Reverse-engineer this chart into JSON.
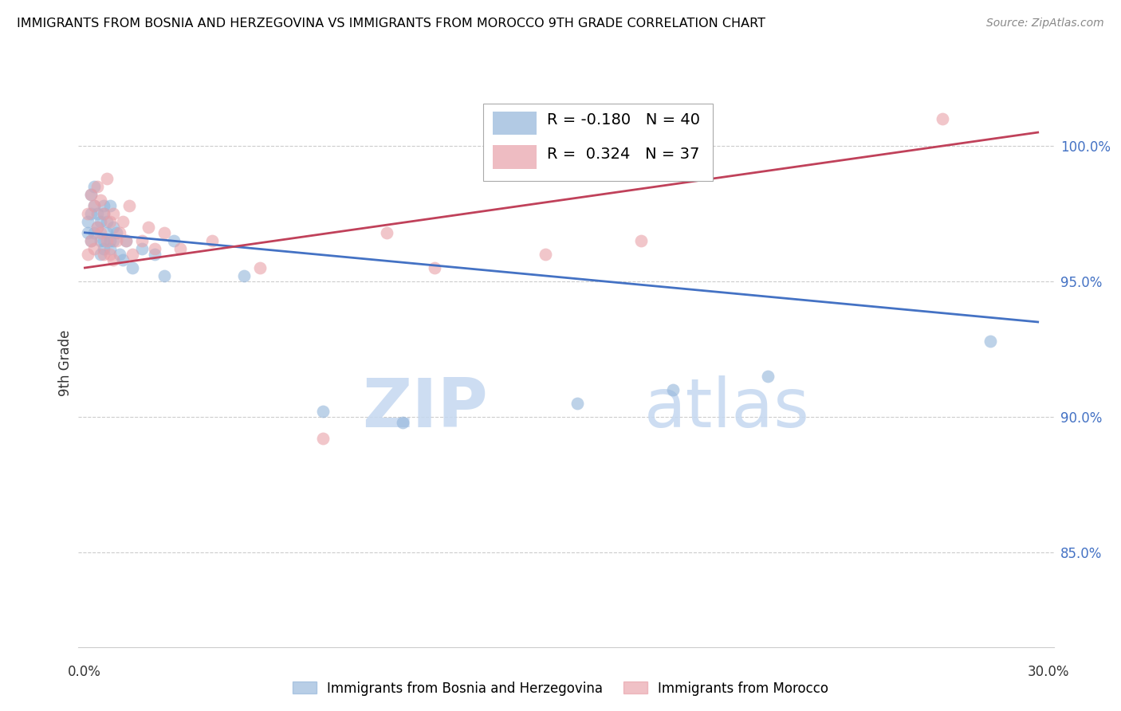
{
  "title": "IMMIGRANTS FROM BOSNIA AND HERZEGOVINA VS IMMIGRANTS FROM MOROCCO 9TH GRADE CORRELATION CHART",
  "source": "Source: ZipAtlas.com",
  "ylabel": "9th Grade",
  "yticks": [
    85.0,
    90.0,
    95.0,
    100.0
  ],
  "ylim": [
    81.5,
    102.5
  ],
  "xlim": [
    -0.002,
    0.305
  ],
  "legend_blue_r": "-0.180",
  "legend_blue_n": "40",
  "legend_pink_r": "0.324",
  "legend_pink_n": "37",
  "blue_color": "#92B4D9",
  "pink_color": "#E8A0A8",
  "blue_line_color": "#4472C4",
  "pink_line_color": "#C0415A",
  "watermark_zip": "ZIP",
  "watermark_atlas": "atlas",
  "blue_scatter_x": [
    0.001,
    0.001,
    0.002,
    0.002,
    0.002,
    0.003,
    0.003,
    0.003,
    0.004,
    0.004,
    0.005,
    0.005,
    0.005,
    0.006,
    0.006,
    0.006,
    0.006,
    0.007,
    0.007,
    0.008,
    0.008,
    0.008,
    0.009,
    0.009,
    0.01,
    0.011,
    0.012,
    0.013,
    0.015,
    0.018,
    0.022,
    0.025,
    0.028,
    0.05,
    0.075,
    0.1,
    0.155,
    0.185,
    0.215,
    0.285
  ],
  "blue_scatter_y": [
    96.8,
    97.2,
    97.5,
    96.5,
    98.2,
    97.8,
    96.8,
    98.5,
    97.0,
    97.5,
    96.5,
    97.2,
    96.0,
    97.8,
    96.5,
    96.2,
    97.5,
    96.8,
    97.2,
    96.5,
    97.8,
    96.2,
    97.0,
    96.5,
    96.8,
    96.0,
    95.8,
    96.5,
    95.5,
    96.2,
    96.0,
    95.2,
    96.5,
    95.2,
    90.2,
    89.8,
    90.5,
    91.0,
    91.5,
    92.8
  ],
  "pink_scatter_x": [
    0.001,
    0.001,
    0.002,
    0.002,
    0.003,
    0.003,
    0.004,
    0.004,
    0.005,
    0.005,
    0.006,
    0.006,
    0.007,
    0.007,
    0.008,
    0.008,
    0.009,
    0.009,
    0.01,
    0.011,
    0.012,
    0.013,
    0.014,
    0.015,
    0.018,
    0.02,
    0.022,
    0.025,
    0.03,
    0.04,
    0.055,
    0.075,
    0.095,
    0.11,
    0.145,
    0.175,
    0.27
  ],
  "pink_scatter_y": [
    97.5,
    96.0,
    98.2,
    96.5,
    97.8,
    96.2,
    98.5,
    97.0,
    96.8,
    98.0,
    97.5,
    96.0,
    98.8,
    96.5,
    97.2,
    96.0,
    97.5,
    95.8,
    96.5,
    96.8,
    97.2,
    96.5,
    97.8,
    96.0,
    96.5,
    97.0,
    96.2,
    96.8,
    96.2,
    96.5,
    95.5,
    89.2,
    96.8,
    95.5,
    96.0,
    96.5,
    101.0
  ],
  "blue_line_x0": 0.0,
  "blue_line_x1": 0.3,
  "blue_line_y0": 96.8,
  "blue_line_y1": 93.5,
  "pink_line_x0": 0.0,
  "pink_line_x1": 0.3,
  "pink_line_y0": 95.5,
  "pink_line_y1": 100.5
}
